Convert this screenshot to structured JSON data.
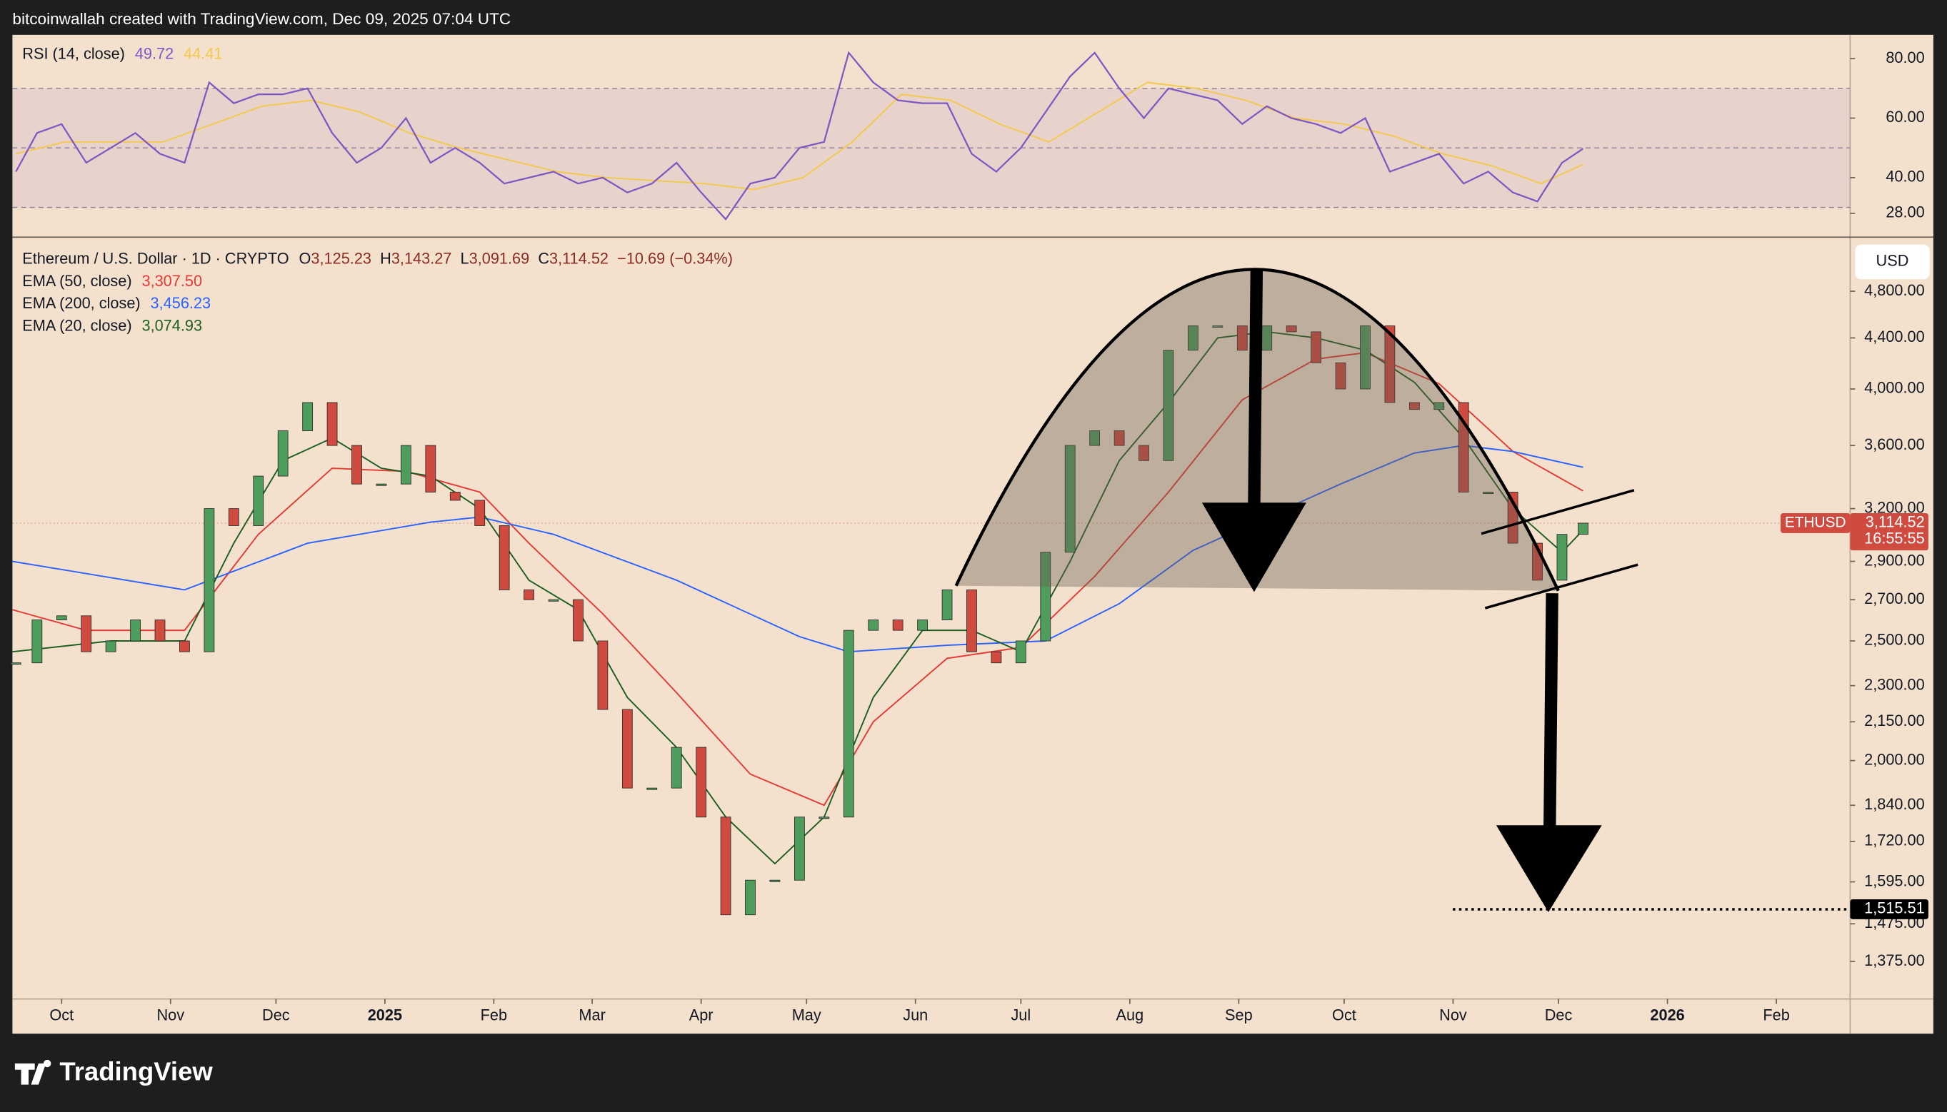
{
  "header": {
    "text": "bitcoinwallah created with TradingView.com, Dec 09, 2025 07:04 UTC"
  },
  "footer": {
    "brand": "TradingView"
  },
  "currency": "USD",
  "chart_data": [
    {
      "type": "line",
      "xlim": [
        -14,
        509
      ],
      "ylim": [
        20,
        88
      ],
      "yticks": [
        {
          "value": 80,
          "label": "80.00"
        },
        {
          "value": 60,
          "label": "60.00"
        },
        {
          "value": 40,
          "label": "40.00"
        },
        {
          "value": 28,
          "label": "28.00"
        }
      ],
      "levels": [
        30,
        50,
        70
      ],
      "band_color": "#7e57c2",
      "series": [
        {
          "name": "RSI (14, close)",
          "last_label": "49.72",
          "color": "#7e57c2",
          "x": [
            -13,
            -7,
            0,
            7,
            14,
            21,
            28,
            35,
            42,
            49,
            56,
            63,
            70,
            77,
            84,
            91,
            98,
            105,
            112,
            119,
            126,
            133,
            140,
            147,
            154,
            161,
            168,
            175,
            182,
            189,
            196,
            203,
            210,
            217,
            224,
            231,
            238,
            245,
            252,
            259,
            266,
            273,
            280,
            287,
            294,
            301,
            308,
            315,
            322,
            329,
            336,
            343,
            350,
            357,
            364,
            371,
            378,
            385,
            392,
            399,
            406,
            413,
            420,
            427,
            433
          ],
          "values": [
            42,
            55,
            58,
            45,
            50,
            55,
            48,
            45,
            72,
            65,
            68,
            68,
            70,
            55,
            45,
            50,
            60,
            45,
            50,
            45,
            38,
            40,
            42,
            38,
            40,
            35,
            38,
            45,
            35,
            26,
            38,
            40,
            50,
            52,
            82,
            72,
            66,
            65,
            65,
            48,
            42,
            50,
            62,
            74,
            82,
            70,
            60,
            70,
            68,
            66,
            58,
            64,
            60,
            58,
            55,
            60,
            42,
            45,
            48,
            38,
            42,
            35,
            32,
            45,
            49.72
          ]
        },
        {
          "last_label": "44.41",
          "color": "#f2c94c",
          "x": [
            -13,
            1,
            15,
            29,
            43,
            57,
            71,
            85,
            99,
            113,
            127,
            141,
            155,
            169,
            183,
            197,
            211,
            225,
            239,
            253,
            267,
            281,
            295,
            309,
            323,
            337,
            351,
            365,
            379,
            393,
            407,
            421,
            433
          ],
          "values": [
            48,
            52,
            52,
            52,
            58,
            64,
            66,
            62,
            55,
            50,
            46,
            42,
            40,
            39,
            38,
            36,
            40,
            52,
            68,
            66,
            58,
            52,
            62,
            72,
            70,
            66,
            60,
            58,
            54,
            48,
            44,
            38,
            44.41
          ]
        }
      ]
    },
    {
      "type": "candlestick",
      "title": "Ethereum / U.S. Dollar · 1D · CRYPTO",
      "ohlc": [
        {
          "key": "O",
          "value": "3,125.23"
        },
        {
          "key": "H",
          "value": "3,143.27"
        },
        {
          "key": "L",
          "value": "3,091.69"
        },
        {
          "key": "C",
          "value": "3,114.52"
        }
      ],
      "change": "−10.69 (−0.34%)",
      "log": true,
      "xlim": [
        -14,
        509
      ],
      "ylim": [
        1282,
        5310
      ],
      "xticks": [
        {
          "value": 0,
          "label": "Oct"
        },
        {
          "value": 31,
          "label": "Nov"
        },
        {
          "value": 61,
          "label": "Dec"
        },
        {
          "value": 92,
          "label": "2025"
        },
        {
          "value": 123,
          "label": "Feb"
        },
        {
          "value": 151,
          "label": "Mar"
        },
        {
          "value": 182,
          "label": "Apr"
        },
        {
          "value": 212,
          "label": "May"
        },
        {
          "value": 243,
          "label": "Jun"
        },
        {
          "value": 273,
          "label": "Jul"
        },
        {
          "value": 304,
          "label": "Aug"
        },
        {
          "value": 335,
          "label": "Sep"
        },
        {
          "value": 365,
          "label": "Oct"
        },
        {
          "value": 396,
          "label": "Nov"
        },
        {
          "value": 426,
          "label": "Dec"
        },
        {
          "value": 457,
          "label": "2026"
        },
        {
          "value": 488,
          "label": "Feb"
        }
      ],
      "yticks": [
        {
          "value": 4800,
          "label": "4,800.00"
        },
        {
          "value": 4400,
          "label": "4,400.00"
        },
        {
          "value": 4000,
          "label": "4,000.00"
        },
        {
          "value": 3600,
          "label": "3,600.00"
        },
        {
          "value": 3200,
          "label": "3,200.00"
        },
        {
          "value": 2900,
          "label": "2,900.00"
        },
        {
          "value": 2700,
          "label": "2,700.00"
        },
        {
          "value": 2500,
          "label": "2,500.00"
        },
        {
          "value": 2300,
          "label": "2,300.00"
        },
        {
          "value": 2150,
          "label": "2,150.00"
        },
        {
          "value": 2000,
          "label": "2,000.00"
        },
        {
          "value": 1840,
          "label": "1,840.00"
        },
        {
          "value": 1720,
          "label": "1,720.00"
        },
        {
          "value": 1595,
          "label": "1,595.00"
        },
        {
          "value": 1475,
          "label": "1,475.00"
        },
        {
          "value": 1375,
          "label": "1,375.00"
        }
      ],
      "series": [
        {
          "name": "ETHUSD",
          "last_label": "3,114.52",
          "countdown": "16:55:55",
          "up_color": "#4f9d5d",
          "down_color": "#cf4a3f",
          "x": [
            -13,
            -7,
            0,
            7,
            14,
            21,
            28,
            35,
            42,
            49,
            56,
            63,
            70,
            77,
            84,
            91,
            98,
            105,
            112,
            119,
            126,
            133,
            140,
            147,
            154,
            161,
            168,
            175,
            182,
            189,
            196,
            203,
            210,
            217,
            224,
            231,
            238,
            245,
            252,
            259,
            266,
            273,
            280,
            287,
            294,
            301,
            308,
            315,
            322,
            329,
            336,
            343,
            350,
            357,
            364,
            371,
            378,
            385,
            392,
            399,
            406,
            413,
            420,
            427,
            433
          ],
          "values": [
            2400,
            2600,
            2620,
            2450,
            2500,
            2600,
            2500,
            2450,
            3200,
            3100,
            3400,
            3700,
            3900,
            3600,
            3350,
            3350,
            3600,
            3300,
            3250,
            3100,
            2750,
            2700,
            2700,
            2500,
            2200,
            1900,
            1900,
            2050,
            1800,
            1500,
            1600,
            1600,
            1800,
            1800,
            2550,
            2600,
            2550,
            2600,
            2750,
            2450,
            2400,
            2500,
            2950,
            3600,
            3700,
            3600,
            3500,
            4300,
            4500,
            4500,
            4300,
            4500,
            4450,
            4200,
            4000,
            4500,
            3900,
            3850,
            3900,
            3300,
            3300,
            3000,
            2800,
            3050,
            3114.52
          ]
        }
      ],
      "overlays": [
        {
          "name": "EMA (50, close)",
          "last_label": "3,307.50",
          "color": "#e53935",
          "x": [
            -14,
            7,
            35,
            56,
            77,
            98,
            119,
            133,
            154,
            175,
            196,
            217,
            231,
            252,
            273,
            294,
            315,
            336,
            357,
            371,
            392,
            413,
            433
          ],
          "values": [
            2650,
            2550,
            2550,
            3050,
            3450,
            3430,
            3300,
            3000,
            2630,
            2270,
            1950,
            1840,
            2150,
            2420,
            2470,
            2820,
            3300,
            3920,
            4230,
            4280,
            4040,
            3560,
            3307.5
          ]
        },
        {
          "name": "EMA (200, close)",
          "last_label": "3,456.23",
          "color": "#2962ff",
          "x": [
            -14,
            35,
            70,
            105,
            119,
            140,
            175,
            210,
            224,
            252,
            280,
            301,
            322,
            343,
            364,
            385,
            399,
            413,
            433
          ],
          "values": [
            2900,
            2750,
            3000,
            3120,
            3150,
            3050,
            2800,
            2520,
            2450,
            2480,
            2500,
            2680,
            2960,
            3150,
            3350,
            3550,
            3600,
            3560,
            3456.23
          ]
        },
        {
          "name": "EMA (20, close)",
          "last_label": "3,074.93",
          "color": "#1b5e20",
          "x": [
            -14,
            14,
            35,
            49,
            63,
            77,
            91,
            105,
            119,
            133,
            147,
            161,
            175,
            189,
            203,
            217,
            231,
            245,
            259,
            273,
            287,
            301,
            315,
            329,
            343,
            357,
            371,
            385,
            399,
            413,
            427,
            433
          ],
          "values": [
            2450,
            2500,
            2500,
            3000,
            3500,
            3650,
            3450,
            3400,
            3200,
            2800,
            2650,
            2250,
            2050,
            1800,
            1650,
            1800,
            2250,
            2550,
            2550,
            2450,
            2900,
            3500,
            3900,
            4400,
            4450,
            4400,
            4300,
            4050,
            3650,
            3200,
            2950,
            3074.93
          ]
        }
      ],
      "target": {
        "value": 1515.51,
        "label": "1,515.51"
      }
    }
  ]
}
